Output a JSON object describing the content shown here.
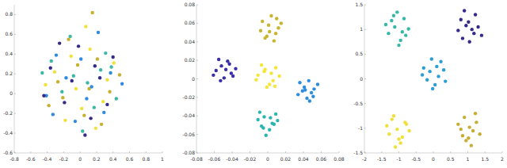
{
  "chart_data": [
    {
      "type": "scatter",
      "marker": "circle",
      "grid": false,
      "xlim": [
        -0.8,
        1
      ],
      "xticks": [
        -0.8,
        -0.6,
        -0.4,
        -0.2,
        0,
        0.2,
        0.4,
        0.6,
        0.8,
        1
      ],
      "ylim": [
        -0.6,
        0.9
      ],
      "yticks": [
        -0.6,
        -0.4,
        -0.2,
        0,
        0.2,
        0.4,
        0.6,
        0.8
      ],
      "series": [
        {
          "color": "#f2e13a",
          "x": [
            -0.31,
            0.12,
            0.28,
            -0.05,
            0.41,
            -0.18,
            0.07,
            0.33,
            -0.42,
            0.19,
            -0.11,
            0.02
          ],
          "values": [
            0.22,
            0.45,
            -0.08,
            0.05,
            0.31,
            -0.27,
            0.68,
            0.14,
            0.09,
            -0.35,
            0.38,
            -0.15
          ]
        },
        {
          "color": "#c8b02e",
          "x": [
            0.21,
            -0.27,
            0.05,
            0.36,
            -0.14,
            0.48,
            -0.38,
            0.11,
            -0.03,
            0.26,
            -0.21,
            0.15
          ],
          "values": [
            0.35,
            0.12,
            -0.22,
            0.02,
            0.55,
            0.19,
            -0.12,
            0.05,
            0.29,
            -0.31,
            -0.04,
            0.82
          ]
        },
        {
          "color": "#3bb8a5",
          "x": [
            -0.08,
            0.31,
            -0.35,
            0.17,
            0.44,
            -0.22,
            0.03,
            -0.46,
            0.25,
            -0.12,
            0.09,
            0.38
          ],
          "values": [
            0.18,
            0.41,
            0.33,
            -0.14,
            -0.05,
            0.02,
            -0.38,
            0.21,
            0.24,
            0.58,
            0.11,
            0.27
          ]
        },
        {
          "color": "#2e8be0",
          "x": [
            0.14,
            -0.29,
            0.37,
            -0.06,
            0.22,
            -0.41,
            0.01,
            0.29,
            -0.17,
            0.51,
            -0.33,
            0.08
          ],
          "values": [
            0.07,
            0.39,
            0.21,
            -0.28,
            0.62,
            -0.02,
            0.35,
            -0.19,
            0.16,
            0.1,
            -0.21,
            -0.05
          ]
        },
        {
          "color": "#352a87",
          "x": [
            -0.19,
            0.24,
            -0.02,
            0.4,
            -0.36,
            0.13,
            -0.1,
            0.33,
            -0.25,
            0.06,
            0.18,
            -0.44
          ],
          "values": [
            -0.09,
            0.16,
            0.48,
            0.37,
            0.26,
            -0.25,
            0.13,
            -0.11,
            0.51,
            -0.42,
            0.28,
            -0.02
          ]
        }
      ]
    },
    {
      "type": "scatter",
      "marker": "circle",
      "grid": false,
      "xlim": [
        -0.08,
        0.08
      ],
      "xticks": [
        -0.08,
        -0.06,
        -0.04,
        -0.02,
        0,
        0.02,
        0.04,
        0.06,
        0.08
      ],
      "ylim": [
        -0.08,
        0.08
      ],
      "yticks": [
        -0.08,
        -0.06,
        -0.04,
        -0.02,
        0,
        0.02,
        0.04,
        0.06,
        0.08
      ],
      "series": [
        {
          "color": "#3a2fa8",
          "x": [
            -0.052,
            -0.041,
            -0.058,
            -0.045,
            -0.036,
            -0.061,
            -0.049,
            -0.043,
            -0.055,
            -0.039,
            -0.047,
            -0.053
          ],
          "values": [
            0.014,
            0.006,
            0.009,
            0.019,
            0.011,
            0.004,
            0.001,
            0.016,
            0.021,
            0.003,
            0.01,
            -0.002
          ]
        },
        {
          "color": "#c9b42e",
          "x": [
            0.001,
            0.009,
            -0.006,
            0.012,
            0.004,
            -0.003,
            0.015,
            0.007,
            -0.008,
            0.002,
            0.01,
            -0.001
          ],
          "values": [
            0.058,
            0.049,
            0.062,
            0.055,
            0.068,
            0.044,
            0.06,
            0.041,
            0.052,
            0.051,
            0.065,
            0.046
          ]
        },
        {
          "color": "#f5e536",
          "x": [
            -0.004,
            0.006,
            -0.011,
            0.009,
            0.002,
            -0.007,
            0.013,
            -0.001,
            0.004,
            -0.013,
            0.008,
            -0.003
          ],
          "values": [
            0.008,
            -0.002,
            0.004,
            0.012,
            -0.006,
            0.015,
            0.003,
            -0.009,
            0.006,
            -0.001,
            -0.008,
            0.01
          ]
        },
        {
          "color": "#2d8ee0",
          "x": [
            0.041,
            0.049,
            0.036,
            0.052,
            0.044,
            0.039,
            0.056,
            0.046,
            0.034,
            0.047,
            0.042,
            0.051
          ],
          "values": [
            -0.009,
            -0.015,
            -0.004,
            -0.011,
            -0.021,
            -0.013,
            -0.006,
            -0.002,
            -0.017,
            -0.024,
            -0.012,
            -0.019
          ]
        },
        {
          "color": "#2bb5b0",
          "x": [
            -0.004,
            0.005,
            -0.011,
            0.002,
            -0.007,
            0.009,
            -0.002,
            0.011,
            -0.009,
            0.003,
            -0.005,
            0.007
          ],
          "values": [
            -0.041,
            -0.048,
            -0.044,
            -0.055,
            -0.051,
            -0.038,
            -0.061,
            -0.045,
            -0.036,
            -0.042,
            -0.053,
            -0.049
          ]
        }
      ]
    },
    {
      "type": "scatter",
      "marker": "circle",
      "grid": false,
      "xlim": [
        -2,
        2
      ],
      "xticks": [
        -2,
        -1.5,
        -1,
        -0.5,
        0,
        0.5,
        1,
        1.5,
        2
      ],
      "ylim": [
        -1.5,
        1.5
      ],
      "yticks": [
        -1.5,
        -1,
        -0.5,
        0,
        0.5,
        1,
        1.5
      ],
      "series": [
        {
          "color": "#36b8a6",
          "x": [
            -1.12,
            -0.85,
            -1.3,
            -0.95,
            -1.05,
            -0.72,
            -1.21,
            -0.9,
            -1.38,
            -1.0,
            -0.8,
            -1.15
          ],
          "values": [
            1.05,
            1.22,
            0.92,
            0.78,
            1.35,
            1.01,
            1.18,
            0.95,
            1.1,
            0.68,
            0.88,
            1.28
          ]
        },
        {
          "color": "#352a87",
          "x": [
            0.95,
            1.18,
            0.8,
            1.3,
            1.05,
            0.72,
            1.22,
            0.9,
            1.4,
            1.02,
            0.85,
            1.12
          ],
          "values": [
            1.08,
            0.92,
            1.2,
            1.05,
            0.75,
            0.98,
            1.3,
            1.38,
            0.88,
            1.15,
            0.82,
            1.0
          ]
        },
        {
          "color": "#2b9ed8",
          "x": [
            -0.1,
            0.15,
            -0.28,
            0.3,
            0.05,
            -0.18,
            0.22,
            -0.05,
            0.35,
            -0.32,
            0.1,
            -0.02
          ],
          "values": [
            0.15,
            0.05,
            0.22,
            0.18,
            -0.12,
            -0.02,
            0.35,
            0.4,
            -0.05,
            0.08,
            0.25,
            -0.2
          ]
        },
        {
          "color": "#f0e03a",
          "x": [
            -1.05,
            -0.82,
            -1.28,
            -0.95,
            -1.15,
            -0.7,
            -1.35,
            -0.9,
            -1.1,
            -0.78,
            -1.2,
            -1.0
          ],
          "values": [
            -1.02,
            -0.88,
            -1.12,
            -1.3,
            -0.75,
            -1.05,
            -0.95,
            -1.18,
            -1.38,
            -0.92,
            -0.82,
            -1.22
          ]
        },
        {
          "color": "#c7ad35",
          "x": [
            1.05,
            0.85,
            1.25,
            0.95,
            1.15,
            0.72,
            1.35,
            0.9,
            1.1,
            1.22,
            0.8,
            1.02
          ],
          "values": [
            -0.98,
            -1.15,
            -0.88,
            -1.25,
            -1.05,
            -0.92,
            -1.12,
            -0.78,
            -1.35,
            -0.7,
            -1.02,
            -1.2
          ]
        }
      ]
    }
  ]
}
